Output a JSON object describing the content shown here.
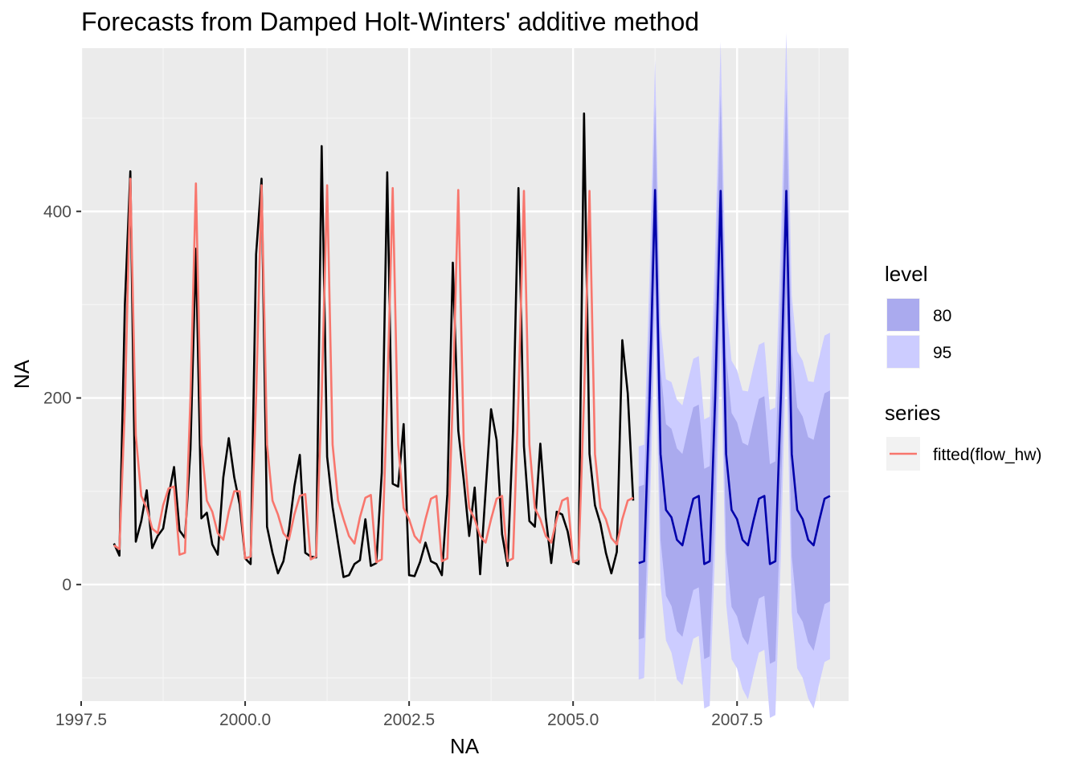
{
  "chart_data": {
    "type": "line",
    "title": "Forecasts from Damped Holt-Winters' additive method",
    "xlabel": "NA",
    "ylabel": "NA",
    "xlim": [
      1997.5,
      2009.2
    ],
    "ylim": [
      -125,
      575
    ],
    "x_ticks": [
      {
        "value": 1997.5,
        "label": "1997.5"
      },
      {
        "value": 2000.0,
        "label": "2000.0"
      },
      {
        "value": 2002.5,
        "label": "2002.5"
      },
      {
        "value": 2005.0,
        "label": "2005.0"
      },
      {
        "value": 2007.5,
        "label": "2007.5"
      }
    ],
    "y_ticks": [
      {
        "value": 0,
        "label": "0"
      },
      {
        "value": 200,
        "label": "200"
      },
      {
        "value": 400,
        "label": "400"
      }
    ],
    "grid": true,
    "series": [
      {
        "role": "observed",
        "color": "#000000",
        "x_start": 1998.0,
        "x_step": 0.0833333,
        "values": [
          44,
          31,
          300,
          443,
          46,
          68,
          101,
          39,
          52,
          60,
          95,
          126,
          58,
          50,
          145,
          360,
          71,
          77,
          43,
          32,
          115,
          157,
          115,
          86,
          28,
          22,
          354,
          435,
          62,
          34,
          12,
          25,
          58,
          105,
          139,
          34,
          30,
          29,
          470,
          137,
          83,
          45,
          8,
          10,
          22,
          26,
          70,
          20,
          23,
          120,
          442,
          108,
          105,
          172,
          10,
          9,
          24,
          45,
          25,
          22,
          10,
          97,
          345,
          165,
          112,
          52,
          104,
          11,
          100,
          188,
          155,
          54,
          20,
          165,
          425,
          148,
          68,
          62,
          151,
          72,
          23,
          78,
          75,
          57,
          25,
          22,
          505,
          140,
          85,
          65,
          34,
          12,
          35,
          262,
          205,
          90
        ]
      },
      {
        "name": "fitted(flow_hw)",
        "color": "#f8766d",
        "x_start": 1998.0,
        "x_step": 0.0833333,
        "values": [
          42,
          38,
          190,
          435,
          160,
          95,
          82,
          60,
          55,
          85,
          103,
          105,
          32,
          34,
          200,
          430,
          150,
          90,
          78,
          55,
          48,
          78,
          100,
          100,
          28,
          30,
          200,
          428,
          150,
          90,
          75,
          55,
          48,
          75,
          95,
          97,
          27,
          30,
          200,
          428,
          150,
          90,
          70,
          52,
          44,
          72,
          93,
          96,
          24,
          27,
          200,
          425,
          150,
          82,
          70,
          52,
          45,
          70,
          92,
          95,
          25,
          28,
          200,
          423,
          150,
          82,
          70,
          52,
          45,
          70,
          92,
          95,
          25,
          28,
          200,
          422,
          150,
          82,
          70,
          52,
          45,
          70,
          90,
          93,
          24,
          27,
          200,
          422,
          140,
          82,
          70,
          50,
          43,
          70,
          90,
          93
        ]
      },
      {
        "role": "forecast",
        "color": "#0000aa",
        "x_start": 2006.0,
        "x_step": 0.0833333,
        "values": [
          23,
          25,
          200,
          423,
          140,
          80,
          72,
          48,
          42,
          68,
          92,
          95,
          22,
          25,
          200,
          422,
          140,
          80,
          70,
          48,
          42,
          68,
          92,
          95,
          22,
          25,
          200,
          422,
          140,
          80,
          70,
          48,
          42,
          68,
          92,
          95
        ]
      }
    ],
    "intervals": [
      {
        "level": "95",
        "color": "#ccccff",
        "half_widths": [
          125,
          125,
          135,
          140,
          140,
          140,
          145,
          150,
          150,
          150,
          150,
          150,
          155,
          155,
          160,
          160,
          160,
          160,
          160,
          160,
          165,
          165,
          165,
          165,
          165,
          165,
          170,
          170,
          170,
          170,
          170,
          170,
          175,
          175,
          175,
          175
        ]
      },
      {
        "level": "80",
        "color": "#aaaaee",
        "half_widths": [
          82,
          82,
          88,
          92,
          92,
          92,
          95,
          98,
          98,
          98,
          98,
          98,
          102,
          102,
          104,
          104,
          104,
          104,
          104,
          104,
          107,
          107,
          107,
          107,
          107,
          107,
          110,
          110,
          110,
          110,
          110,
          110,
          113,
          113,
          113,
          113
        ]
      }
    ],
    "legend": {
      "placement": "right",
      "groups": [
        {
          "title": "level",
          "items": [
            {
              "label": "80",
              "color": "#aaaaee"
            },
            {
              "label": "95",
              "color": "#ccccff"
            }
          ]
        },
        {
          "title": "series",
          "items": [
            {
              "label": "fitted(flow_hw)",
              "color": "#f8766d"
            }
          ]
        }
      ]
    }
  }
}
